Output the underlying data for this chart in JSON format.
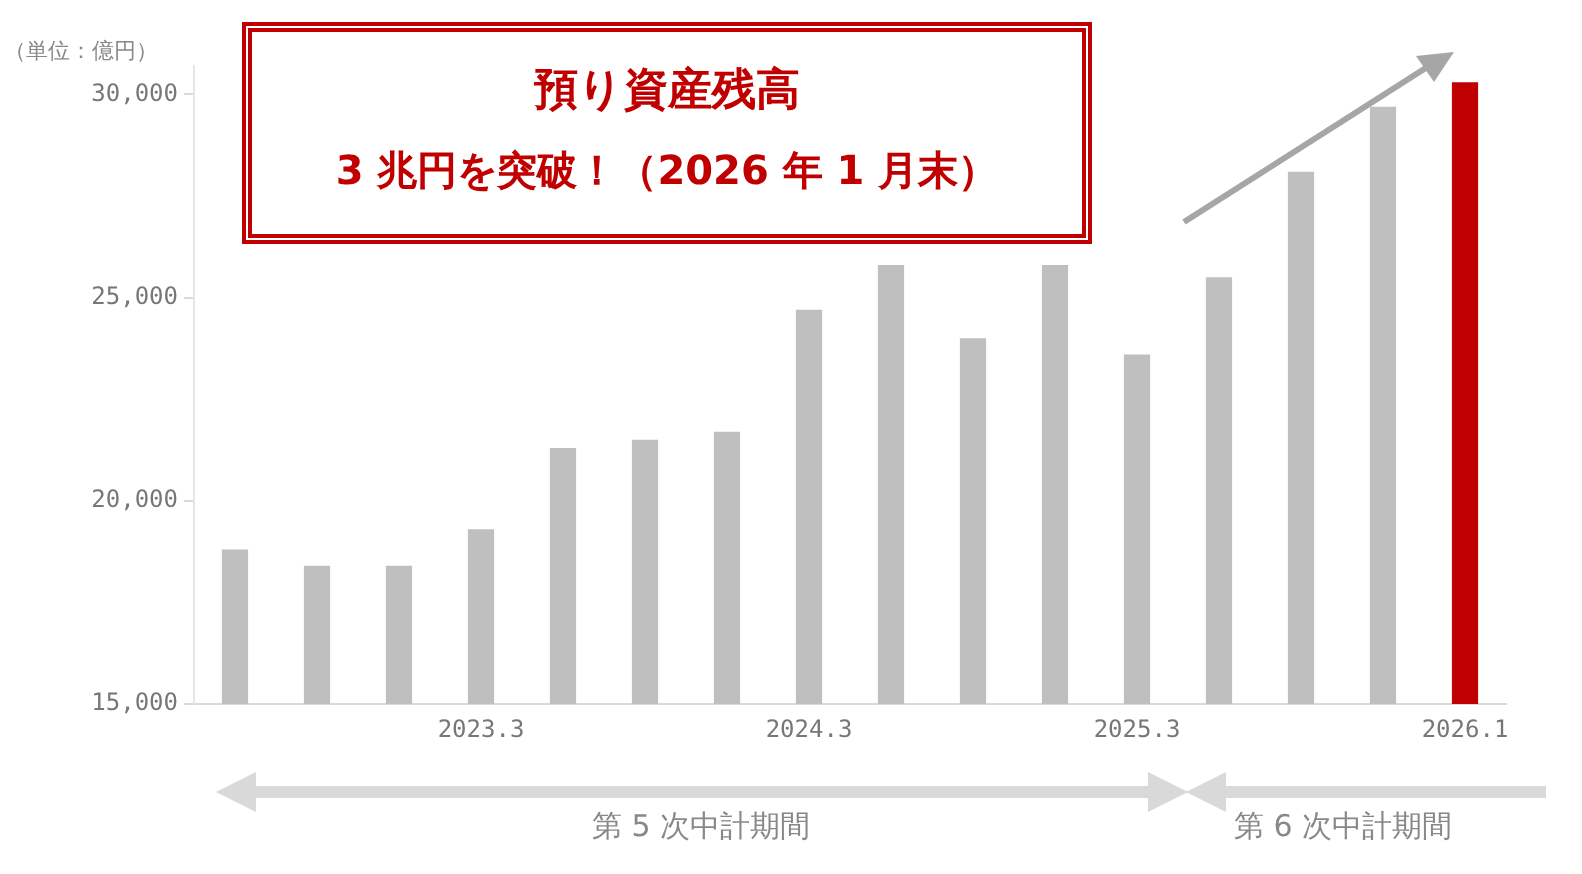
{
  "chart_data": {
    "type": "bar",
    "title": "預り資産残高",
    "subtitle": "3 兆円を突破！（2026 年 1 月末）",
    "ylabel": "（単位：億円）",
    "categories": [
      null,
      null,
      null,
      "2023.3",
      null,
      null,
      null,
      "2024.3",
      null,
      null,
      null,
      "2025.3",
      null,
      null,
      null,
      "2026.1"
    ],
    "values": [
      18800,
      18400,
      18400,
      19300,
      21300,
      21500,
      21700,
      24700,
      25800,
      24000,
      25800,
      23600,
      25500,
      28100,
      29700,
      30300
    ],
    "colors": [
      "#bfbfbf",
      "#bfbfbf",
      "#bfbfbf",
      "#bfbfbf",
      "#bfbfbf",
      "#bfbfbf",
      "#bfbfbf",
      "#bfbfbf",
      "#bfbfbf",
      "#bfbfbf",
      "#bfbfbf",
      "#bfbfbf",
      "#bfbfbf",
      "#bfbfbf",
      "#bfbfbf",
      "#c00000"
    ],
    "ylim": [
      15000,
      30700
    ],
    "yticks": [
      {
        "value": 15000,
        "label": "15,000"
      },
      {
        "value": 20000,
        "label": "20,000"
      },
      {
        "value": 25000,
        "label": "25,000"
      },
      {
        "value": 30000,
        "label": "30,000"
      }
    ],
    "grid": false,
    "annotations": [
      "第 5 次中計期間",
      "第 6 次中計期間"
    ]
  }
}
